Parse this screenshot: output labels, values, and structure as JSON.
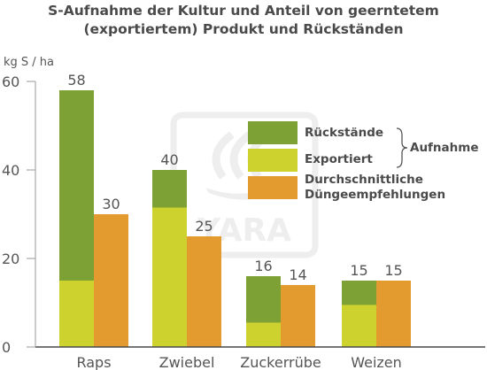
{
  "chart_data": {
    "type": "bar",
    "title_line1": "S-Aufnahme der Kultur und Anteil von geerntetem",
    "title_line2": "(exportiertem) Produkt und Rückständen",
    "ylabel": "kg S / ha",
    "ylim": [
      0,
      60
    ],
    "yticks": [
      0,
      20,
      40,
      60
    ],
    "categories": [
      "Raps",
      "Zwiebel",
      "Zuckerrübe",
      "Weizen"
    ],
    "stack_totals": [
      58,
      40,
      16,
      15
    ],
    "series": [
      {
        "name": "Exportiert",
        "values": [
          15,
          31.5,
          5.5,
          9.5
        ],
        "color": "#cdd22e"
      },
      {
        "name": "Rückstände",
        "values": [
          43,
          8.5,
          10.5,
          5.5
        ],
        "color": "#7ea135"
      },
      {
        "name": "Durchschnittliche Düngeempfehlungen",
        "values": [
          30,
          25,
          14,
          15
        ],
        "color": "#e39a2e"
      }
    ],
    "legend": {
      "residues": "Rückstände",
      "exported": "Exportiert",
      "recommendation_line1": "Durchschnittliche",
      "recommendation_line2": "Düngeempfehlungen",
      "uptake": "Aufnahme",
      "placement": "center-right"
    },
    "watermark": "YARA",
    "grid": false
  }
}
